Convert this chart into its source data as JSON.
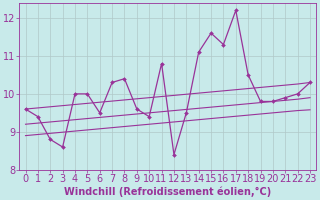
{
  "xlabel": "Windchill (Refroidissement éolien,°C)",
  "background_color": "#c8eaea",
  "grid_color": "#b0c8c8",
  "line_color": "#993399",
  "x_data": [
    0,
    1,
    2,
    3,
    4,
    5,
    6,
    7,
    8,
    9,
    10,
    11,
    12,
    13,
    14,
    15,
    16,
    17,
    18,
    19,
    20,
    21,
    22,
    23
  ],
  "y_main": [
    9.6,
    9.4,
    8.8,
    8.6,
    10.0,
    10.0,
    9.5,
    10.3,
    10.4,
    9.6,
    9.4,
    10.8,
    8.4,
    9.5,
    11.1,
    11.6,
    11.3,
    12.2,
    10.5,
    9.8,
    9.8,
    9.9,
    10.0,
    10.3
  ],
  "y_upper": [
    9.6,
    9.63,
    9.66,
    9.69,
    9.72,
    9.75,
    9.78,
    9.81,
    9.84,
    9.87,
    9.9,
    9.93,
    9.96,
    9.99,
    10.02,
    10.05,
    10.08,
    10.11,
    10.14,
    10.17,
    10.2,
    10.23,
    10.26,
    10.3
  ],
  "y_reg": [
    9.2,
    9.23,
    9.26,
    9.29,
    9.32,
    9.35,
    9.38,
    9.41,
    9.44,
    9.47,
    9.5,
    9.53,
    9.56,
    9.59,
    9.62,
    9.65,
    9.68,
    9.71,
    9.74,
    9.77,
    9.8,
    9.83,
    9.86,
    9.9
  ],
  "y_lower": [
    8.9,
    8.93,
    8.96,
    8.99,
    9.02,
    9.05,
    9.08,
    9.11,
    9.14,
    9.17,
    9.2,
    9.23,
    9.26,
    9.29,
    9.32,
    9.35,
    9.38,
    9.41,
    9.44,
    9.47,
    9.5,
    9.53,
    9.56,
    9.58
  ],
  "ylim": [
    8.0,
    12.4
  ],
  "xlim": [
    -0.5,
    23.5
  ],
  "xticks": [
    0,
    1,
    2,
    3,
    4,
    5,
    6,
    7,
    8,
    9,
    10,
    11,
    12,
    13,
    14,
    15,
    16,
    17,
    18,
    19,
    20,
    21,
    22,
    23
  ],
  "yticks": [
    8,
    9,
    10,
    11,
    12
  ],
  "tick_fontsize": 7,
  "label_fontsize": 7
}
